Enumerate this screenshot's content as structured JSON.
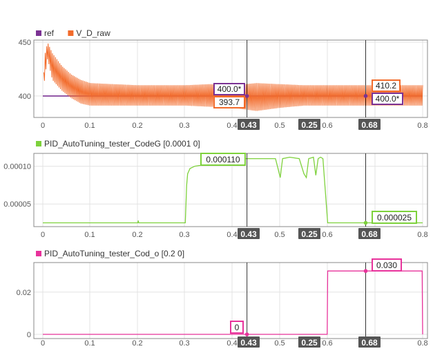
{
  "colors": {
    "ref": "#7b3294",
    "v_d_raw": "#f26b2b",
    "codeg": "#7dd13b",
    "cod_o": "#e8329b",
    "grid": "#e3e3e3",
    "axis": "#888888",
    "cursor": "#555555"
  },
  "cursors": [
    {
      "label": "0.43",
      "x": 0.43
    },
    {
      "label": "0.25",
      "delta": true
    },
    {
      "label": "0.68",
      "x": 0.68
    }
  ],
  "chart_data": [
    {
      "type": "line",
      "series": [
        {
          "name": "ref",
          "color": "#7b3294",
          "x": [
            0,
            0.8
          ],
          "y": [
            400,
            400
          ]
        },
        {
          "name": "V_D_raw",
          "color": "#f26b2b",
          "envelope": {
            "x": [
              0,
              0.005,
              0.01,
              0.02,
              0.04,
              0.06,
              0.08,
              0.1,
              0.15,
              0.2,
              0.25,
              0.3,
              0.35,
              0.4,
              0.45,
              0.5,
              0.55,
              0.6,
              0.65,
              0.7,
              0.75,
              0.8
            ],
            "upper": [
              410,
              440,
              450,
              440,
              428,
              420,
              415,
              412,
              411,
              410,
              410,
              410,
              411,
              410,
              412,
              411,
              410,
              410,
              410,
              410,
              410,
              410
            ],
            "lower": [
              400,
              420,
              435,
              415,
              405,
              398,
              393,
              391,
              391,
              391,
              391,
              391,
              390,
              389,
              386,
              389,
              391,
              391,
              391,
              391,
              391,
              391
            ]
          }
        }
      ],
      "xlim": [
        0,
        0.8
      ],
      "ylim": [
        380,
        452
      ],
      "xticks": [
        "0",
        "0.1",
        "0.2",
        "0.3",
        "0.4",
        "0.5",
        "0.6",
        "0.7",
        "0.8"
      ],
      "yticks": [
        {
          "v": 450,
          "label": "450"
        },
        {
          "v": 400,
          "label": "400"
        }
      ],
      "legend": [
        "ref",
        "V_D_raw"
      ],
      "tags": [
        {
          "label": "400.0*",
          "series": "ref"
        },
        {
          "label": "393.7",
          "series": "V_D_raw"
        },
        {
          "label": "410.2",
          "series": "V_D_raw"
        },
        {
          "label": "400.0*",
          "series": "ref"
        }
      ]
    },
    {
      "type": "line",
      "series": [
        {
          "name": "PID_AutoTuning_tester_CodeG [0.0001 0]",
          "color": "#7dd13b",
          "x": [
            0,
            0.2,
            0.201,
            0.202,
            0.3,
            0.303,
            0.305,
            0.31,
            0.32,
            0.33,
            0.35,
            0.38,
            0.4,
            0.42,
            0.45,
            0.49,
            0.495,
            0.5,
            0.505,
            0.52,
            0.54,
            0.55,
            0.555,
            0.56,
            0.57,
            0.575,
            0.58,
            0.585,
            0.59,
            0.6,
            0.65,
            0.8
          ],
          "y": [
            2.5e-05,
            2.5e-05,
            2.8e-05,
            2.5e-05,
            2.5e-05,
            7.5e-05,
            9e-05,
            9.7e-05,
            0.0001,
            0.000101,
            0.000102,
            0.000106,
            0.000108,
            0.00011,
            0.00011,
            0.00011,
            9.8e-05,
            8.5e-05,
            0.00011,
            0.000112,
            0.00011,
            9e-05,
            8.5e-05,
            0.00011,
            0.000112,
            8.8e-05,
            0.00011,
            0.000112,
            0.00011,
            2.5e-05,
            2.5e-05,
            2.5e-05
          ]
        }
      ],
      "xlim": [
        0,
        0.8
      ],
      "ylim": [
        2e-05,
        0.000117
      ],
      "xticks": [
        "0",
        "0.1",
        "0.2",
        "0.3",
        "0.4",
        "0.5",
        "0.6",
        "0.7",
        "0.8"
      ],
      "yticks": [
        {
          "v": 0.0001,
          "label": "0.00010"
        },
        {
          "v": 5e-05,
          "label": "0.00005"
        }
      ],
      "legend": [
        "PID_AutoTuning_tester_CodeG [0.0001 0]"
      ],
      "tags": [
        {
          "label": "0.000110"
        },
        {
          "label": "0.000025"
        }
      ]
    },
    {
      "type": "line",
      "series": [
        {
          "name": "PID_AutoTuning_tester_Cod_o [0.2 0]",
          "color": "#e8329b",
          "x": [
            0,
            0.599,
            0.6,
            0.799,
            0.8
          ],
          "y": [
            0,
            0,
            0.03,
            0.03,
            0
          ]
        }
      ],
      "xlim": [
        0,
        0.8
      ],
      "ylim": [
        -0.002,
        0.034
      ],
      "xticks": [
        "0",
        "0.1",
        "0.2",
        "0.3",
        "0.4",
        "0.5",
        "0.6",
        "0.7",
        "0.8"
      ],
      "yticks": [
        {
          "v": 0.02,
          "label": "0.02"
        },
        {
          "v": 0,
          "label": "0"
        }
      ],
      "legend": [
        "PID_AutoTuning_tester_Cod_o [0.2 0]"
      ],
      "tags": [
        {
          "label": "0"
        },
        {
          "label": "0.030"
        }
      ]
    }
  ]
}
